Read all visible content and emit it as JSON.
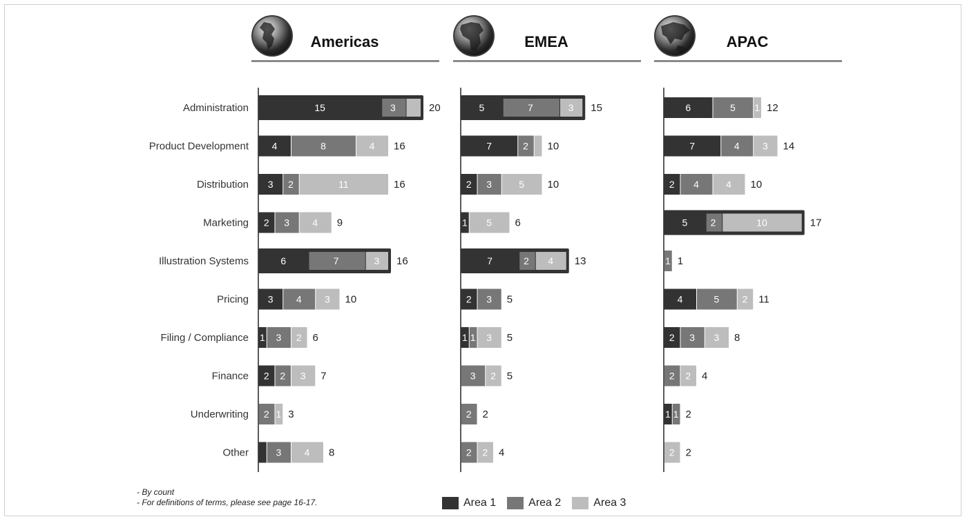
{
  "chart_data": {
    "type": "bar",
    "orientation": "horizontal",
    "stacked": true,
    "categories": [
      "Administration",
      "Product Development",
      "Distribution",
      "Marketing",
      "Illustration Systems",
      "Pricing",
      "Filing / Compliance",
      "Finance",
      "Underwriting",
      "Other"
    ],
    "series_names": [
      "Area 1",
      "Area 2",
      "Area 3"
    ],
    "colors": [
      "#333333",
      "#777777",
      "#bdbdbd"
    ],
    "panels": [
      {
        "title": "Americas",
        "globe": "americas",
        "values": [
          [
            15,
            3,
            2
          ],
          [
            4,
            8,
            4
          ],
          [
            3,
            2,
            11
          ],
          [
            2,
            3,
            4
          ],
          [
            6,
            7,
            3
          ],
          [
            3,
            4,
            3
          ],
          [
            1,
            3,
            2
          ],
          [
            2,
            2,
            3
          ],
          [
            0,
            2,
            1
          ],
          [
            1,
            3,
            4
          ]
        ],
        "labels": [
          [
            "15",
            "3",
            ""
          ],
          [
            "4",
            "8",
            "4"
          ],
          [
            "3",
            "2",
            "11"
          ],
          [
            "2",
            "3",
            "4"
          ],
          [
            "6",
            "7",
            "3"
          ],
          [
            "3",
            "4",
            "3"
          ],
          [
            "1",
            "3",
            "2"
          ],
          [
            "2",
            "2",
            "3"
          ],
          [
            "",
            "2",
            "1"
          ],
          [
            "",
            "3",
            "4"
          ]
        ],
        "totals": [
          "20",
          "16",
          "16",
          "9",
          "16",
          "10",
          "6",
          "7",
          "3",
          "8"
        ],
        "highlighted": [
          0,
          4
        ]
      },
      {
        "title": "EMEA",
        "globe": "emea",
        "values": [
          [
            5,
            7,
            3
          ],
          [
            7,
            2,
            1
          ],
          [
            2,
            3,
            5
          ],
          [
            1,
            0,
            5
          ],
          [
            7,
            2,
            4
          ],
          [
            2,
            3,
            0
          ],
          [
            1,
            1,
            3
          ],
          [
            0,
            3,
            2
          ],
          [
            0,
            2,
            0
          ],
          [
            0,
            2,
            2
          ]
        ],
        "labels": [
          [
            "5",
            "7",
            "3"
          ],
          [
            "7",
            "2",
            ""
          ],
          [
            "2",
            "3",
            "5"
          ],
          [
            "1",
            "",
            "5"
          ],
          [
            "7",
            "2",
            "4"
          ],
          [
            "2",
            "3",
            ""
          ],
          [
            "1",
            "1",
            "3"
          ],
          [
            "",
            "3",
            "2"
          ],
          [
            "",
            "2",
            ""
          ],
          [
            "",
            "2",
            "2"
          ]
        ],
        "totals": [
          "15",
          "10",
          "10",
          "6",
          "13",
          "5",
          "5",
          "5",
          "2",
          "4"
        ],
        "highlighted": [
          0,
          4
        ]
      },
      {
        "title": "APAC",
        "globe": "apac",
        "values": [
          [
            6,
            5,
            1
          ],
          [
            7,
            4,
            3
          ],
          [
            2,
            4,
            4
          ],
          [
            5,
            2,
            10
          ],
          [
            0,
            1,
            0
          ],
          [
            4,
            5,
            2
          ],
          [
            2,
            3,
            3
          ],
          [
            0,
            2,
            2
          ],
          [
            1,
            1,
            0
          ],
          [
            0,
            0,
            2
          ]
        ],
        "labels": [
          [
            "6",
            "5",
            "1"
          ],
          [
            "7",
            "4",
            "3"
          ],
          [
            "2",
            "4",
            "4"
          ],
          [
            "5",
            "2",
            "10"
          ],
          [
            "",
            "1",
            ""
          ],
          [
            "4",
            "5",
            "2"
          ],
          [
            "2",
            "3",
            "3"
          ],
          [
            "",
            "2",
            "2"
          ],
          [
            "1",
            "1",
            ""
          ],
          [
            "",
            "",
            "2"
          ]
        ],
        "totals": [
          "12",
          "14",
          "10",
          "17",
          "1",
          "11",
          "8",
          "4",
          "2",
          "2"
        ],
        "highlighted": [
          3
        ]
      }
    ],
    "legend_position": "bottom",
    "notes": [
      "- By count",
      "- For definitions of terms, please see page 16-17."
    ]
  }
}
